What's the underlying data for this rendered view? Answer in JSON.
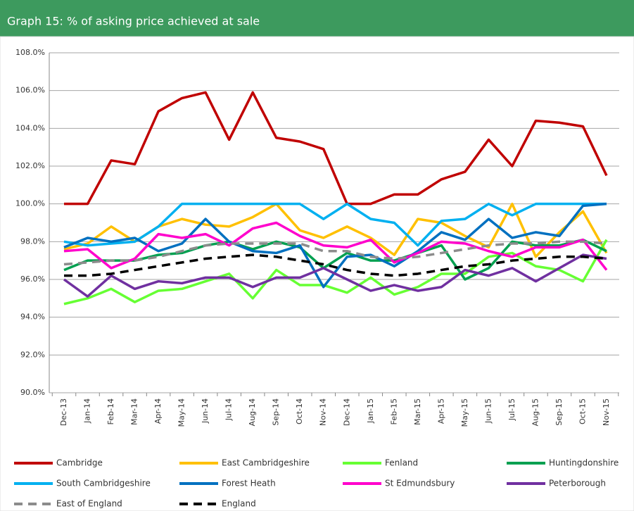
{
  "chart_data": {
    "type": "line",
    "title": "Graph 15: % of asking price achieved at sale",
    "categories": [
      "Dec-13",
      "Jan-14",
      "Feb-14",
      "Mar-14",
      "Apr-14",
      "May-14",
      "Jun-14",
      "Jul-14",
      "Aug-14",
      "Sep-14",
      "Oct-14",
      "Nov-14",
      "Dec-14",
      "Jan-15",
      "Feb-15",
      "Mar-15",
      "Apr-15",
      "May-15",
      "Jun-15",
      "Jul-15",
      "Aug-15",
      "Sep-15",
      "Oct-15",
      "Nov-15"
    ],
    "ylim": [
      90,
      108
    ],
    "yticks": [
      {
        "value": 90,
        "label": "90.0%"
      },
      {
        "value": 92,
        "label": "92.0%"
      },
      {
        "value": 94,
        "label": "94.0%"
      },
      {
        "value": 96,
        "label": "96.0%"
      },
      {
        "value": 98,
        "label": "98.0%"
      },
      {
        "value": 100,
        "label": "100.0%"
      },
      {
        "value": 102,
        "label": "102.0%"
      },
      {
        "value": 104,
        "label": "104.0%"
      },
      {
        "value": 106,
        "label": "106.0%"
      },
      {
        "value": 108,
        "label": "108.0%"
      }
    ],
    "grid": true,
    "series": [
      {
        "name": "Cambridge",
        "color": "#c00000",
        "dashed": false,
        "values": [
          100.0,
          100.0,
          102.3,
          102.1,
          104.9,
          105.6,
          105.9,
          103.4,
          105.9,
          103.5,
          103.3,
          102.9,
          100.0,
          100.0,
          100.5,
          100.5,
          101.3,
          101.7,
          103.4,
          102.0,
          104.4,
          104.3,
          104.1,
          101.5
        ]
      },
      {
        "name": "East Cambridgeshire",
        "color": "#ffc000",
        "dashed": false,
        "values": [
          97.6,
          97.9,
          98.8,
          98.0,
          98.8,
          99.2,
          98.9,
          98.8,
          99.3,
          100.0,
          98.6,
          98.2,
          98.8,
          98.2,
          97.3,
          99.2,
          99.0,
          98.3,
          97.7,
          100.0,
          97.2,
          98.5,
          99.6,
          97.4
        ]
      },
      {
        "name": "Fenland",
        "color": "#66ff33",
        "dashed": false,
        "values": [
          94.7,
          95.0,
          95.5,
          94.8,
          95.4,
          95.5,
          95.9,
          96.3,
          95.0,
          96.5,
          95.7,
          95.7,
          95.3,
          96.1,
          95.2,
          95.6,
          96.3,
          96.3,
          97.2,
          97.4,
          96.7,
          96.5,
          95.9,
          98.1
        ]
      },
      {
        "name": "Huntingdonshire",
        "color": "#00a050",
        "dashed": false,
        "values": [
          96.5,
          97.0,
          97.0,
          97.0,
          97.3,
          97.4,
          97.8,
          98.0,
          97.6,
          98.0,
          97.7,
          96.6,
          97.4,
          97.0,
          97.0,
          97.4,
          97.8,
          96.0,
          96.6,
          98.0,
          97.8,
          97.8,
          98.1,
          97.5
        ]
      },
      {
        "name": "South Cambridgeshire",
        "color": "#00b0f0",
        "dashed": false,
        "values": [
          98.0,
          97.8,
          97.9,
          98.0,
          98.8,
          100.0,
          100.0,
          100.0,
          100.0,
          100.0,
          100.0,
          99.2,
          100.0,
          99.2,
          99.0,
          97.8,
          99.1,
          99.2,
          100.0,
          99.4,
          100.0,
          100.0,
          100.0,
          100.0
        ]
      },
      {
        "name": "Forest Heath",
        "color": "#0070c0",
        "dashed": false,
        "values": [
          97.7,
          98.2,
          98.0,
          98.2,
          97.5,
          97.9,
          99.2,
          98.0,
          97.5,
          97.4,
          97.8,
          95.6,
          97.2,
          97.3,
          96.7,
          97.5,
          98.5,
          98.1,
          99.2,
          98.2,
          98.5,
          98.3,
          99.9,
          100.0
        ]
      },
      {
        "name": "St Edmundsbury",
        "color": "#ff00cc",
        "dashed": false,
        "values": [
          97.5,
          97.6,
          96.6,
          97.1,
          98.4,
          98.2,
          98.4,
          97.8,
          98.7,
          99.0,
          98.3,
          97.8,
          97.7,
          98.1,
          96.9,
          97.4,
          98.0,
          97.9,
          97.5,
          97.2,
          97.7,
          97.7,
          98.1,
          96.5
        ]
      },
      {
        "name": "Peterborough",
        "color": "#7030a0",
        "dashed": false,
        "values": [
          96.0,
          95.1,
          96.2,
          95.5,
          95.9,
          95.8,
          96.1,
          96.1,
          95.6,
          96.1,
          96.1,
          96.6,
          96.0,
          95.4,
          95.7,
          95.4,
          95.6,
          96.5,
          96.2,
          96.6,
          95.9,
          96.6,
          97.3,
          97.1
        ]
      },
      {
        "name": "East of England",
        "color": "#8c8c8c",
        "dashed": true,
        "values": [
          96.8,
          96.9,
          97.0,
          97.0,
          97.2,
          97.5,
          97.8,
          97.9,
          97.9,
          97.9,
          97.9,
          97.5,
          97.5,
          97.2,
          97.1,
          97.2,
          97.4,
          97.6,
          97.8,
          97.9,
          97.9,
          98.0,
          98.0,
          97.9
        ]
      },
      {
        "name": "England",
        "color": "#000000",
        "dashed": true,
        "values": [
          96.2,
          96.2,
          96.3,
          96.5,
          96.7,
          96.9,
          97.1,
          97.2,
          97.3,
          97.2,
          97.0,
          96.8,
          96.5,
          96.3,
          96.2,
          96.3,
          96.5,
          96.7,
          96.8,
          97.0,
          97.1,
          97.2,
          97.2,
          97.1
        ]
      }
    ]
  }
}
